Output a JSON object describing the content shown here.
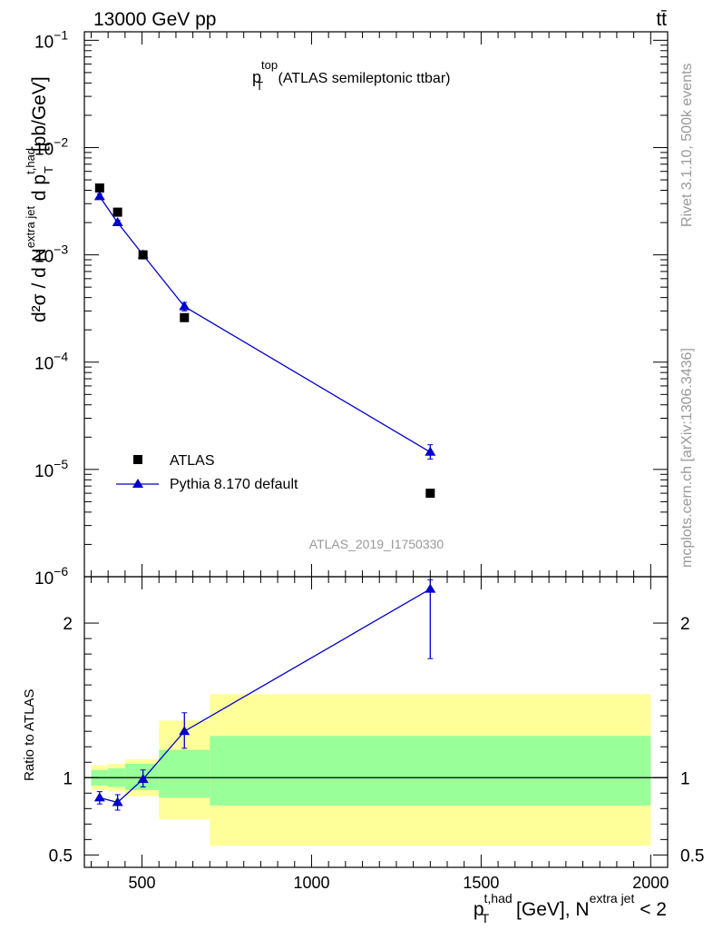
{
  "header": {
    "left": "13000 GeV pp",
    "right": "tt̄"
  },
  "side_labels": {
    "rivet": "Rivet 3.1.10,  500k events",
    "mcplots": "mcplots.cern.ch [arXiv:1306.3436]"
  },
  "watermark": "ATLAS_2019_I1750330",
  "colors": {
    "data": "#000000",
    "mc": "#0000cc",
    "band_inner": "#99ff99",
    "band_outer": "#ffff99"
  },
  "chart_data": [
    {
      "type": "scatter",
      "panel": "main",
      "title": {
        "p": "p",
        "sup": "top",
        "sub": "T",
        "rest": " (ATLAS semileptonic ttbar)"
      },
      "ylabel": {
        "d2sigma": "d²σ / d N",
        "sup1": "extra jet",
        "mid": " d p",
        "sup2": "t,had",
        "sub2": "T",
        "units": " [pb/GeV]"
      },
      "yscale": "log",
      "ylim": [
        1e-06,
        0.12
      ],
      "xlim": [
        330,
        2050
      ],
      "ytick_labels": [
        {
          "base": "10",
          "exp": "−6",
          "value": 1e-06
        },
        {
          "base": "10",
          "exp": "−5",
          "value": 1e-05
        },
        {
          "base": "10",
          "exp": "−4",
          "value": 0.0001
        },
        {
          "base": "10",
          "exp": "−3",
          "value": 0.001
        },
        {
          "base": "10",
          "exp": "−2",
          "value": 0.01
        },
        {
          "base": "10",
          "exp": "−1",
          "value": 0.1
        }
      ],
      "legend": {
        "placement": "bottom-left",
        "entries": [
          {
            "label": "ATLAS",
            "marker": "square"
          },
          {
            "label": "Pythia 8.170 default",
            "marker": "triangle"
          }
        ]
      },
      "series": [
        {
          "name": "ATLAS",
          "x": [
            375,
            428,
            503,
            625,
            1350
          ],
          "y": [
            0.0042,
            0.0025,
            0.001,
            0.00026,
            6e-06
          ]
        },
        {
          "name": "Pythia 8.170 default",
          "x": [
            375,
            428,
            503,
            625,
            1350
          ],
          "y": [
            0.0035,
            0.002,
            0.001,
            0.00033,
            1.45e-05
          ],
          "yerr_low": [
            0.0033,
            0.0019,
            0.00095,
            0.0003,
            1.25e-05
          ],
          "yerr_high": [
            0.0037,
            0.0021,
            0.00105,
            0.00036,
            1.7e-05
          ]
        }
      ]
    },
    {
      "type": "line",
      "panel": "ratio",
      "ylabel": "Ratio to ATLAS",
      "xlabel": {
        "p": "p",
        "sup1": "t,had",
        "sub1": "T",
        "mid": " [GeV], N",
        "sup2": "extra jet",
        "tail": " < 2"
      },
      "ylim": [
        0.42,
        2.3
      ],
      "xlim": [
        330,
        2050
      ],
      "ytick_labels": [
        "0.5",
        "1",
        "2"
      ],
      "ytick_values": [
        0.5,
        1,
        2
      ],
      "xtick_labels": [
        "500",
        "1000",
        "1500",
        "2000"
      ],
      "xtick_values": [
        500,
        1000,
        1500,
        2000
      ],
      "bands": [
        {
          "x0": 350,
          "x1": 400,
          "inner": [
            0.95,
            1.05
          ],
          "outer": [
            0.92,
            1.08
          ]
        },
        {
          "x0": 400,
          "x1": 450,
          "inner": [
            0.94,
            1.06
          ],
          "outer": [
            0.91,
            1.09
          ]
        },
        {
          "x0": 450,
          "x1": 550,
          "inner": [
            0.92,
            1.09
          ],
          "outer": [
            0.88,
            1.12
          ]
        },
        {
          "x0": 550,
          "x1": 700,
          "inner": [
            0.87,
            1.18
          ],
          "outer": [
            0.73,
            1.37
          ]
        },
        {
          "x0": 700,
          "x1": 2000,
          "inner": [
            0.82,
            1.27
          ],
          "outer": [
            0.56,
            1.54
          ]
        }
      ],
      "series": [
        {
          "name": "Pythia 8.170 default",
          "x": [
            375,
            428,
            503,
            625,
            1350
          ],
          "y": [
            0.87,
            0.84,
            0.99,
            1.3,
            2.22
          ],
          "yerr_low": [
            0.83,
            0.79,
            0.94,
            1.19,
            1.77
          ],
          "yerr_high": [
            0.91,
            0.89,
            1.05,
            1.42,
            2.28
          ]
        }
      ]
    }
  ]
}
